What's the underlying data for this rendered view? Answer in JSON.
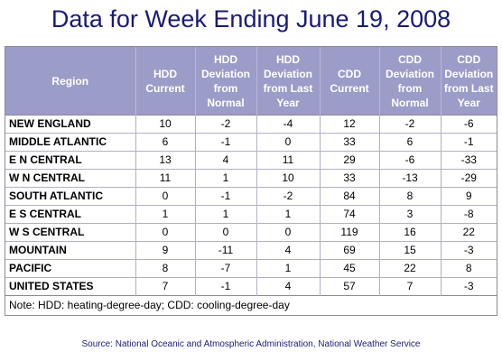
{
  "chart_data": {
    "type": "table",
    "title": "Data for Week Ending June 19, 2008",
    "columns": [
      "Region",
      "HDD Current",
      "HDD Deviation from Normal",
      "HDD Deviation from Last Year",
      "CDD Current",
      "CDD Deviation from Normal",
      "CDD Deviation from Last Year"
    ],
    "rows": [
      [
        "NEW ENGLAND",
        "10",
        "-2",
        "-4",
        "12",
        "-2",
        "-6"
      ],
      [
        "MIDDLE ATLANTIC",
        "6",
        "-1",
        "0",
        "33",
        "6",
        "-1"
      ],
      [
        "E N CENTRAL",
        "13",
        "4",
        "11",
        "29",
        "-6",
        "-33"
      ],
      [
        "W N CENTRAL",
        "11",
        "1",
        "10",
        "33",
        "-13",
        "-29"
      ],
      [
        "SOUTH ATLANTIC",
        "0",
        "-1",
        "-2",
        "84",
        "8",
        "9"
      ],
      [
        "E S CENTRAL",
        "1",
        "1",
        "1",
        "74",
        "3",
        "-8"
      ],
      [
        "W S CENTRAL",
        "0",
        "0",
        "0",
        "119",
        "16",
        "22"
      ],
      [
        "MOUNTAIN",
        "9",
        "-11",
        "4",
        "69",
        "15",
        "-3"
      ],
      [
        "PACIFIC",
        "8",
        "-7",
        "1",
        "45",
        "22",
        "8"
      ],
      [
        "UNITED STATES",
        "7",
        "-1",
        "4",
        "57",
        "7",
        "-3"
      ]
    ],
    "note": "Note: HDD: heating-degree-day; CDD: cooling-degree-day",
    "source": "Source:  National Oceanic and Atmospheric Administration, National Weather Service"
  },
  "colors": {
    "title": "#1a1a78",
    "header_bg": "#9c9cc8",
    "header_text": "#ffffff"
  }
}
